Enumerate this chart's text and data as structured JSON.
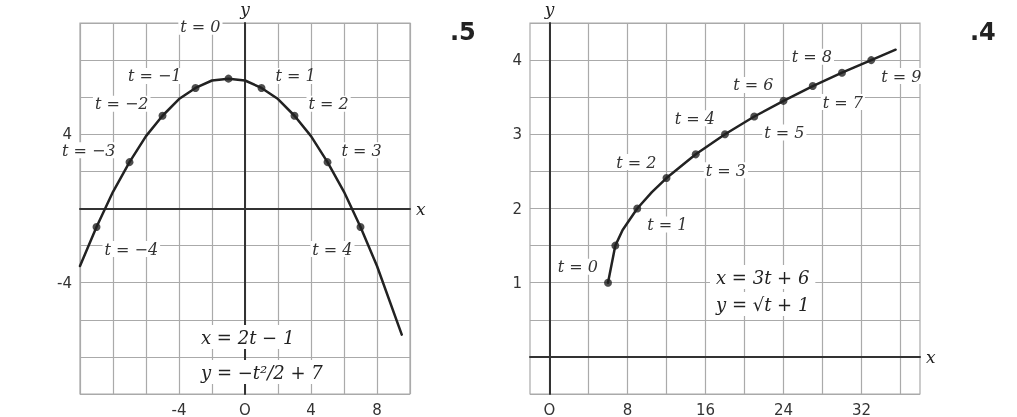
{
  "chart_data": [
    {
      "type": "line",
      "xlabel": "x",
      "ylabel": "y",
      "grid": true,
      "xlim": [
        -10,
        10
      ],
      "ylim": [
        -10,
        10
      ],
      "xticks": [
        {
          "value": -10,
          "label": null
        },
        {
          "value": -8,
          "label": null
        },
        {
          "value": -6,
          "label": null
        },
        -4,
        {
          "value": -2,
          "label": null
        },
        {
          "value": 0,
          "label": "O"
        },
        {
          "value": 2,
          "label": null
        },
        4,
        {
          "value": 6,
          "label": null
        },
        8,
        {
          "value": 10,
          "label": null
        }
      ],
      "yticks": [
        {
          "value": -10,
          "label": null
        },
        {
          "value": -8,
          "label": null
        },
        {
          "value": -6,
          "label": null
        },
        -4,
        {
          "value": -2,
          "label": null
        },
        {
          "value": 0,
          "label": null
        },
        {
          "value": 2,
          "label": null
        },
        4,
        {
          "value": 6,
          "label": null
        },
        {
          "value": 8,
          "label": null
        },
        {
          "value": 10,
          "label": null
        }
      ],
      "series": [
        {
          "type": "line",
          "color": "#222222",
          "marker": "none",
          "x": [
            -10,
            -9,
            -8,
            -7,
            -6,
            -5,
            -4,
            -3,
            -2,
            -1,
            0,
            1,
            2,
            3,
            4,
            5,
            6,
            7,
            8,
            9.5
          ],
          "values": [
            -3.1,
            -1,
            0.9,
            2.5,
            3.9,
            5,
            5.9,
            6.5,
            6.9,
            7,
            6.9,
            6.5,
            5.9,
            5,
            3.9,
            2.5,
            0.9,
            -1,
            -3.1,
            -6.8
          ]
        },
        {
          "type": "scatter",
          "color": "#222222",
          "marker": "circle",
          "x": [
            -9,
            -7,
            -5,
            -3,
            -1,
            1,
            3,
            5,
            7
          ],
          "values": [
            -1,
            2.5,
            5,
            6.5,
            7,
            6.5,
            5,
            2.5,
            -1
          ]
        }
      ],
      "annotations": [
        {
          "text": "t = −4",
          "x": -9,
          "y": -1
        },
        {
          "text": "t = −3",
          "x": -7,
          "y": 2.5
        },
        {
          "text": "t = −2",
          "x": -5,
          "y": 5
        },
        {
          "text": "t = −1",
          "x": -3,
          "y": 6.5
        },
        {
          "text": "t = 0",
          "x": -1,
          "y": 7
        },
        {
          "text": "t = 1",
          "x": 1,
          "y": 6.5
        },
        {
          "text": "t = 2",
          "x": 3,
          "y": 5
        },
        {
          "text": "t = 3",
          "x": 5,
          "y": 2.5
        },
        {
          "text": "t = 4",
          "x": 7,
          "y": -1
        },
        "x = 2t − 1",
        "y = −t²/2 + 7",
        ".5"
      ]
    },
    {
      "type": "line",
      "xlabel": "x",
      "ylabel": "y",
      "grid": true,
      "xlim": [
        -2,
        38
      ],
      "ylim": [
        -0.5,
        4.5
      ],
      "xticks": [
        {
          "value": 0,
          "label": "O"
        },
        {
          "value": 4,
          "label": null
        },
        8,
        {
          "value": 12,
          "label": null
        },
        16,
        {
          "value": 20,
          "label": null
        },
        24,
        {
          "value": 28,
          "label": null
        },
        32,
        {
          "value": 36,
          "label": null
        }
      ],
      "yticks": [
        {
          "value": -0.5,
          "label": null
        },
        {
          "value": 0,
          "label": null
        },
        {
          "value": 0.5,
          "label": null
        },
        1,
        {
          "value": 1.5,
          "label": null
        },
        2,
        {
          "value": 2.5,
          "label": null
        },
        3,
        {
          "value": 3.5,
          "label": null
        },
        4,
        {
          "value": 4.5,
          "label": null
        }
      ],
      "series": [
        {
          "type": "line",
          "color": "#222222",
          "marker": "none",
          "x": [
            6,
            6.75,
            7.5,
            9,
            10.5,
            12,
            15,
            18,
            21,
            24,
            27,
            30,
            33,
            35.5
          ],
          "values": [
            1,
            1.5,
            1.71,
            2,
            2.22,
            2.41,
            2.73,
            3,
            3.24,
            3.45,
            3.65,
            3.83,
            4,
            4.14
          ]
        },
        {
          "type": "scatter",
          "color": "#222222",
          "marker": "circle",
          "x": [
            6,
            6.75,
            9,
            12,
            15,
            18,
            21,
            24,
            27,
            30,
            33
          ],
          "values": [
            1,
            1.5,
            2,
            2.41,
            2.73,
            3,
            3.24,
            3.45,
            3.65,
            3.83,
            4
          ]
        }
      ],
      "annotations": [
        {
          "text": "t = 0",
          "x": 6,
          "y": 1
        },
        {
          "text": "t = 1",
          "x": 9,
          "y": 2
        },
        {
          "text": "t = 2",
          "x": 12,
          "y": 2.41
        },
        {
          "text": "t = 3",
          "x": 15,
          "y": 2.73
        },
        {
          "text": "t = 4",
          "x": 18,
          "y": 3
        },
        {
          "text": "t = 5",
          "x": 21,
          "y": 3.24
        },
        {
          "text": "t = 6",
          "x": 24,
          "y": 3.45
        },
        {
          "text": "t = 7",
          "x": 27,
          "y": 3.65
        },
        {
          "text": "t = 8",
          "x": 30,
          "y": 3.83
        },
        {
          "text": "t = 9",
          "x": 33,
          "y": 4
        },
        "x = 3t + 6",
        "y = √t + 1",
        ".4"
      ]
    }
  ]
}
